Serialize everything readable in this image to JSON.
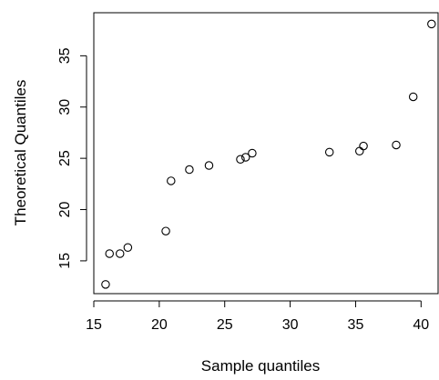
{
  "chart_data": {
    "type": "scatter",
    "title": "",
    "xlabel": "Sample quantiles",
    "ylabel": "Theoretical Quantiles",
    "xlim": [
      15.0,
      41.3
    ],
    "ylim": [
      11.8,
      39.2
    ],
    "x_ticks": [
      15,
      20,
      25,
      30,
      35,
      40
    ],
    "y_ticks": [
      15,
      20,
      25,
      30,
      35
    ],
    "grid": false,
    "series": [
      {
        "x": [
          15.9,
          16.2,
          17.0,
          17.6,
          20.5,
          20.9,
          22.3,
          23.8,
          26.2,
          26.6,
          27.1,
          33.0,
          35.3,
          35.6,
          38.1,
          39.4,
          40.8
        ],
        "y": [
          12.7,
          15.7,
          15.7,
          16.3,
          17.9,
          22.8,
          23.9,
          24.3,
          24.9,
          25.1,
          25.5,
          25.6,
          25.7,
          26.2,
          26.3,
          31.0,
          38.1
        ]
      }
    ]
  }
}
